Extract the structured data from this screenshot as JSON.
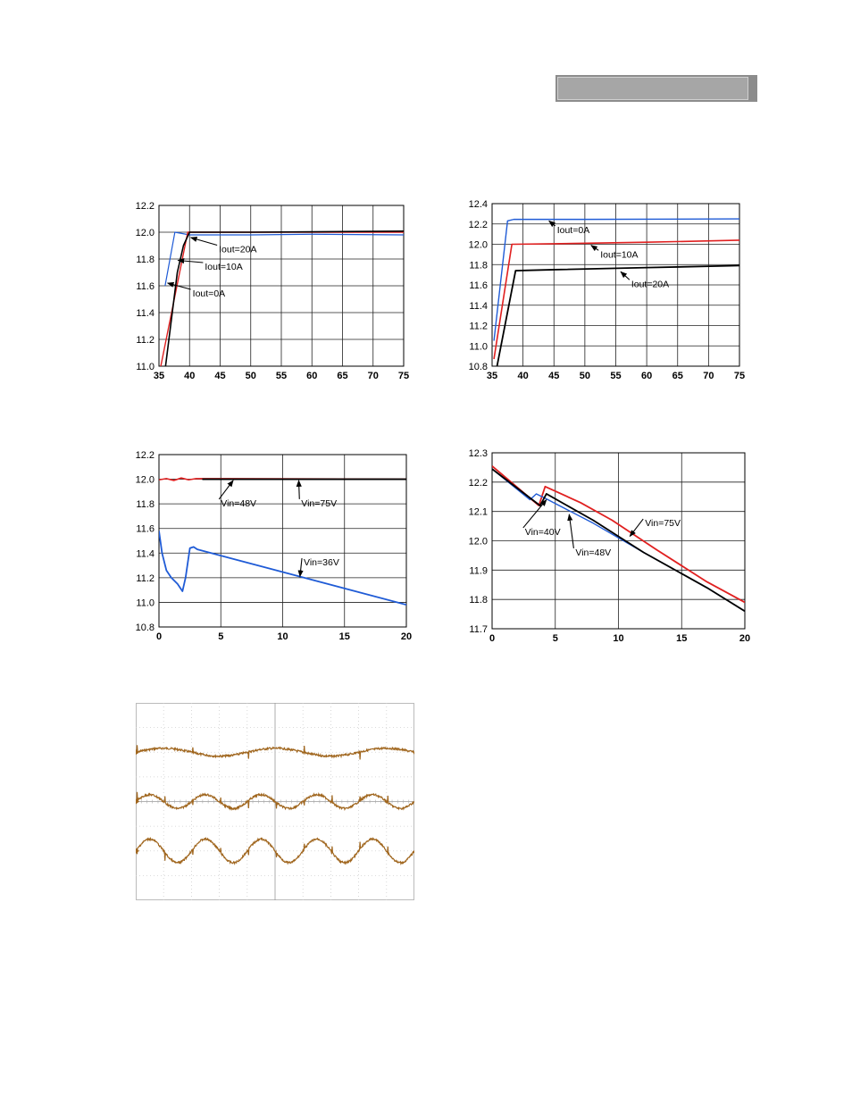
{
  "colors": {
    "blue": "#1f5bd6",
    "red": "#e02020",
    "black": "#000000",
    "trace": "#a0661e",
    "grid": "#000000"
  },
  "chart_data": [
    {
      "id": "c1",
      "type": "line",
      "xlim": [
        35,
        75
      ],
      "ylim": [
        11.0,
        12.2
      ],
      "xticks": [
        35,
        40,
        45,
        50,
        55,
        60,
        65,
        70,
        75
      ],
      "yticks": [
        11.0,
        11.2,
        11.4,
        11.6,
        11.8,
        12.0,
        12.2
      ],
      "ytick_decimals": 1,
      "grid": true,
      "series": [
        {
          "color": "blue",
          "width": 1.2,
          "points": [
            [
              36,
              11.6
            ],
            [
              37.6,
              12.0
            ],
            [
              40,
              11.98
            ],
            [
              50,
              11.98
            ],
            [
              60,
              11.985
            ],
            [
              75,
              11.98
            ]
          ]
        },
        {
          "color": "red",
          "width": 1.4,
          "points": [
            [
              35.3,
              11.0
            ],
            [
              39.7,
              12.0
            ],
            [
              50,
              12.0
            ],
            [
              75,
              12.0
            ]
          ]
        },
        {
          "color": "black",
          "width": 1.6,
          "points": [
            [
              35.8,
              10.9
            ],
            [
              38,
              11.7
            ],
            [
              39,
              11.9
            ],
            [
              40,
              12.0
            ],
            [
              50,
              12.0
            ],
            [
              60,
              12.003
            ],
            [
              75,
              12.008
            ]
          ]
        }
      ],
      "annotations": [
        {
          "text": "Iout=20A",
          "tx": 44.8,
          "ty": 11.85,
          "ax": 40.2,
          "ay": 11.96
        },
        {
          "text": "Iout=10A",
          "tx": 42.5,
          "ty": 11.72,
          "ax": 38.1,
          "ay": 11.79
        },
        {
          "text": "Iout=0A",
          "tx": 40.5,
          "ty": 11.52,
          "ax": 36.4,
          "ay": 11.62
        }
      ]
    },
    {
      "id": "c2",
      "type": "line",
      "xlim": [
        35,
        75
      ],
      "ylim": [
        10.8,
        12.4
      ],
      "xticks": [
        35,
        40,
        45,
        50,
        55,
        60,
        65,
        70,
        75
      ],
      "yticks": [
        10.8,
        11.0,
        11.2,
        11.4,
        11.6,
        11.8,
        12.0,
        12.2,
        12.4
      ],
      "ytick_decimals": 1,
      "grid": true,
      "series": [
        {
          "color": "blue",
          "width": 1.4,
          "points": [
            [
              35.3,
              11.05
            ],
            [
              37.5,
              12.23
            ],
            [
              38.5,
              12.245
            ],
            [
              50,
              12.245
            ],
            [
              75,
              12.25
            ]
          ]
        },
        {
          "color": "red",
          "width": 1.6,
          "points": [
            [
              35.3,
              10.87
            ],
            [
              38.2,
              12.0
            ],
            [
              45,
              12.005
            ],
            [
              60,
              12.02
            ],
            [
              75,
              12.04
            ]
          ]
        },
        {
          "color": "black",
          "width": 1.8,
          "points": [
            [
              35.8,
              10.8
            ],
            [
              38.8,
              11.74
            ],
            [
              45,
              11.75
            ],
            [
              60,
              11.77
            ],
            [
              75,
              11.79
            ]
          ]
        }
      ],
      "annotations": [
        {
          "text": "Iout=0A",
          "tx": 45.5,
          "ty": 12.11,
          "ax": 44.2,
          "ay": 12.23
        },
        {
          "text": "Iout=10A",
          "tx": 52.5,
          "ty": 11.87,
          "ax": 51.0,
          "ay": 11.99
        },
        {
          "text": "Iout=20A",
          "tx": 57.5,
          "ty": 11.58,
          "ax": 55.8,
          "ay": 11.73
        }
      ]
    },
    {
      "id": "c3",
      "type": "line",
      "xlim": [
        0,
        20
      ],
      "ylim": [
        10.8,
        12.2
      ],
      "xticks": [
        0,
        5,
        10,
        15,
        20
      ],
      "yticks": [
        10.8,
        11.0,
        11.2,
        11.4,
        11.6,
        11.8,
        12.0,
        12.2
      ],
      "ytick_decimals": 1,
      "grid": true,
      "series": [
        {
          "color": "red",
          "width": 1.6,
          "points": [
            [
              0,
              11.995
            ],
            [
              0.6,
              12.005
            ],
            [
              1.2,
              11.99
            ],
            [
              1.8,
              12.01
            ],
            [
              2.4,
              11.995
            ],
            [
              3,
              12.005
            ],
            [
              20,
              12.0
            ]
          ]
        },
        {
          "color": "black",
          "width": 1.8,
          "points": [
            [
              3.5,
              12.0
            ],
            [
              20,
              12.0
            ]
          ]
        },
        {
          "color": "blue",
          "width": 1.8,
          "points": [
            [
              0,
              11.58
            ],
            [
              0.25,
              11.4
            ],
            [
              0.6,
              11.26
            ],
            [
              1.0,
              11.2
            ],
            [
              1.5,
              11.15
            ],
            [
              1.9,
              11.09
            ],
            [
              2.15,
              11.2
            ],
            [
              2.5,
              11.44
            ],
            [
              2.8,
              11.45
            ],
            [
              3.1,
              11.43
            ],
            [
              20,
              10.98
            ]
          ]
        }
      ],
      "annotations": [
        {
          "text": "Vin=48V",
          "tx": 5.0,
          "ty": 11.78,
          "ax": 6.0,
          "ay": 11.99
        },
        {
          "text": "Vin=75V",
          "tx": 11.5,
          "ty": 11.78,
          "ax": 11.3,
          "ay": 11.99
        },
        {
          "text": "Vin=36V",
          "tx": 11.7,
          "ty": 11.3,
          "ax": 11.4,
          "ay": 11.21
        }
      ]
    },
    {
      "id": "c4",
      "type": "line",
      "xlim": [
        0,
        20
      ],
      "ylim": [
        11.7,
        12.3
      ],
      "xticks": [
        0,
        5,
        10,
        15,
        20
      ],
      "yticks": [
        11.7,
        11.8,
        11.9,
        12.0,
        12.1,
        12.2,
        12.3
      ],
      "ytick_decimals": 1,
      "grid": true,
      "series": [
        {
          "color": "red",
          "width": 1.8,
          "points": [
            [
              0,
              12.255
            ],
            [
              3.7,
              12.12
            ],
            [
              4.2,
              12.185
            ],
            [
              7,
              12.13
            ],
            [
              9.5,
              12.07
            ],
            [
              13,
              11.97
            ],
            [
              17,
              11.86
            ],
            [
              20,
              11.79
            ]
          ]
        },
        {
          "color": "blue",
          "width": 1.4,
          "points": [
            [
              0,
              12.245
            ],
            [
              3.0,
              12.14
            ],
            [
              3.5,
              12.16
            ],
            [
              4.2,
              12.145
            ],
            [
              8,
              12.06
            ],
            [
              12,
              11.96
            ],
            [
              17,
              11.84
            ],
            [
              20,
              11.76
            ]
          ]
        },
        {
          "color": "black",
          "width": 1.8,
          "points": [
            [
              0,
              12.245
            ],
            [
              3.8,
              12.12
            ],
            [
              4.3,
              12.16
            ],
            [
              8,
              12.07
            ],
            [
              12,
              11.96
            ],
            [
              17,
              11.84
            ],
            [
              20,
              11.76
            ]
          ]
        }
      ],
      "annotations": [
        {
          "text": "Vin=75V",
          "tx": 12.1,
          "ty": 12.05,
          "ax": 10.9,
          "ay": 12.015
        },
        {
          "text": "Vin=40V",
          "tx": 2.6,
          "ty": 12.02,
          "ax": 4.3,
          "ay": 12.14
        },
        {
          "text": "Vin=48V",
          "tx": 6.6,
          "ty": 11.95,
          "ax": 6.1,
          "ay": 12.09
        }
      ]
    }
  ],
  "scope": {
    "type": "waveform",
    "grid_divisions": {
      "x": 10,
      "y": 8
    },
    "traces": [
      {
        "color": "trace",
        "level": 0.75,
        "amplitude": 0.02,
        "cycles": 2.5
      },
      {
        "color": "trace",
        "level": 0.5,
        "amplitude": 0.035,
        "cycles": 5
      },
      {
        "color": "trace",
        "level": 0.25,
        "amplitude": 0.06,
        "cycles": 5
      }
    ]
  }
}
